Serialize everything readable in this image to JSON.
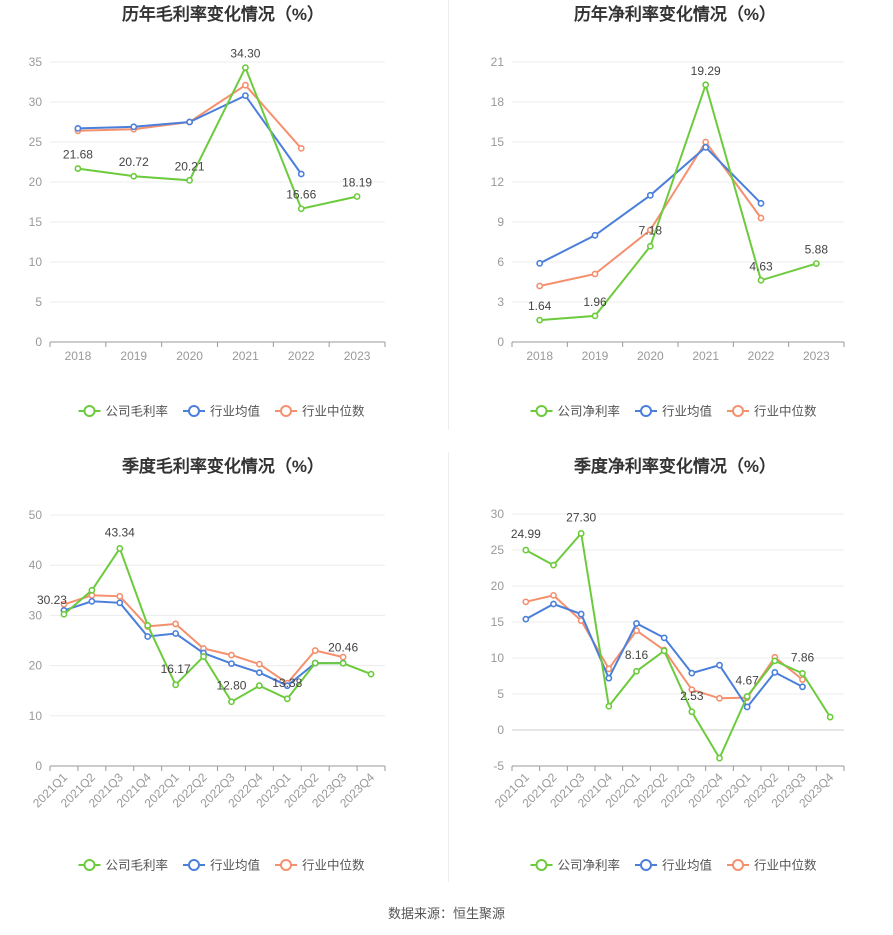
{
  "colors": {
    "company": "#6ccb3c",
    "industry_avg": "#4a7fdb",
    "industry_median": "#f4906e"
  },
  "source_text": "数据来源：恒生聚源",
  "chart_data": [
    {
      "type": "line",
      "title": "历年毛利率变化情况（%）",
      "categories": [
        "2018",
        "2019",
        "2020",
        "2021",
        "2022",
        "2023"
      ],
      "ylim": [
        0,
        35
      ],
      "yticks": [
        0,
        5,
        10,
        15,
        20,
        25,
        30,
        35
      ],
      "grid": true,
      "legend": "bottom",
      "series": [
        {
          "name": "公司毛利率",
          "color": "#6ccb3c",
          "values": [
            21.68,
            20.72,
            20.21,
            34.3,
            16.66,
            18.19
          ],
          "labels": [
            "21.68",
            "20.72",
            "20.21",
            "34.30",
            "16.66",
            "18.19"
          ]
        },
        {
          "name": "行业均值",
          "color": "#4a7fdb",
          "values": [
            26.7,
            26.9,
            27.5,
            30.8,
            21.0,
            null
          ]
        },
        {
          "name": "行业中位数",
          "color": "#f4906e",
          "values": [
            26.4,
            26.6,
            27.5,
            32.1,
            24.2,
            null
          ]
        }
      ]
    },
    {
      "type": "line",
      "title": "历年净利率变化情况（%）",
      "categories": [
        "2018",
        "2019",
        "2020",
        "2021",
        "2022",
        "2023"
      ],
      "ylim": [
        0,
        21
      ],
      "yticks": [
        0,
        3,
        6,
        9,
        12,
        15,
        18,
        21
      ],
      "grid": true,
      "legend": "bottom",
      "series": [
        {
          "name": "公司净利率",
          "color": "#6ccb3c",
          "values": [
            1.64,
            1.96,
            7.18,
            19.29,
            4.63,
            5.88
          ],
          "labels": [
            "1.64",
            "1.96",
            "7.18",
            "19.29",
            "4.63",
            "5.88"
          ]
        },
        {
          "name": "行业均值",
          "color": "#4a7fdb",
          "values": [
            5.9,
            8.0,
            11.0,
            14.6,
            10.4,
            null
          ]
        },
        {
          "name": "行业中位数",
          "color": "#f4906e",
          "values": [
            4.2,
            5.1,
            8.4,
            15.0,
            9.3,
            null
          ]
        }
      ]
    },
    {
      "type": "line",
      "title": "季度毛利率变化情况（%）",
      "categories": [
        "2021Q1",
        "2021Q2",
        "2021Q3",
        "2021Q4",
        "2022Q1",
        "2022Q2",
        "2022Q3",
        "2022Q4",
        "2023Q1",
        "2023Q2",
        "2023Q3",
        "2023Q4"
      ],
      "ylim": [
        0,
        50
      ],
      "yticks": [
        0,
        10,
        20,
        30,
        40,
        50
      ],
      "grid": true,
      "legend": "bottom",
      "series": [
        {
          "name": "公司毛利率",
          "color": "#6ccb3c",
          "values": [
            30.23,
            35.0,
            43.34,
            28.0,
            16.17,
            21.8,
            12.8,
            16.0,
            13.38,
            20.5,
            20.46,
            18.3
          ],
          "labels": [
            "30.23",
            null,
            "43.34",
            null,
            "16.17",
            null,
            "12.80",
            null,
            "13.38",
            null,
            "20.46",
            null
          ]
        },
        {
          "name": "行业均值",
          "color": "#4a7fdb",
          "values": [
            31.0,
            32.8,
            32.5,
            25.8,
            26.4,
            22.5,
            20.4,
            18.6,
            16.0,
            20.5,
            20.5,
            null
          ]
        },
        {
          "name": "行业中位数",
          "color": "#f4906e",
          "values": [
            32.2,
            34.0,
            33.8,
            27.8,
            28.3,
            23.4,
            22.1,
            20.3,
            16.5,
            23.0,
            21.7,
            null
          ]
        }
      ]
    },
    {
      "type": "line",
      "title": "季度净利率变化情况（%）",
      "categories": [
        "2021Q1",
        "2021Q2",
        "2021Q3",
        "2021Q4",
        "2022Q1",
        "2022Q2",
        "2022Q3",
        "2022Q4",
        "2023Q1",
        "2023Q2",
        "2023Q3",
        "2023Q4"
      ],
      "ylim": [
        -5,
        30
      ],
      "yticks": [
        -5,
        0,
        5,
        10,
        15,
        20,
        25,
        30
      ],
      "grid": true,
      "legend": "bottom",
      "series": [
        {
          "name": "公司净利率",
          "color": "#6ccb3c",
          "values": [
            24.99,
            22.9,
            27.3,
            3.3,
            8.16,
            11.0,
            2.53,
            -3.9,
            4.67,
            9.6,
            7.86,
            1.8
          ],
          "labels": [
            "24.99",
            null,
            "27.30",
            null,
            "8.16",
            null,
            "2.53",
            null,
            "4.67",
            null,
            "7.86",
            null
          ]
        },
        {
          "name": "行业均值",
          "color": "#4a7fdb",
          "values": [
            15.4,
            17.5,
            16.1,
            7.2,
            14.8,
            12.8,
            7.9,
            9.0,
            3.2,
            8.0,
            6.0,
            null
          ]
        },
        {
          "name": "行业中位数",
          "color": "#f4906e",
          "values": [
            17.8,
            18.7,
            15.2,
            8.5,
            13.8,
            11.1,
            5.6,
            4.4,
            4.5,
            10.1,
            7.0,
            null
          ]
        }
      ]
    }
  ]
}
